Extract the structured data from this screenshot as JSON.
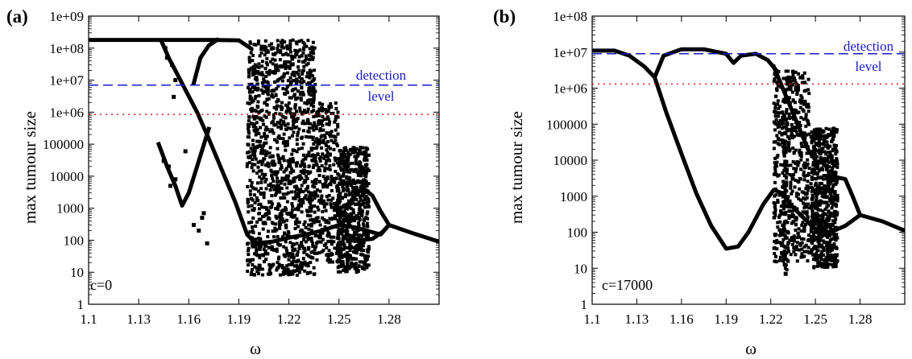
{
  "chart_data": [
    {
      "type": "scatter",
      "panel_label": "(a)",
      "xlabel": "ω",
      "ylabel": "max tumour size",
      "y_scale": "log",
      "xlim": [
        1.1,
        1.31
      ],
      "ylim": [
        1,
        1000000000
      ],
      "x_ticks": [
        "1.1",
        "1.13",
        "1.16",
        "1.19",
        "1.22",
        "1.25",
        "1.28"
      ],
      "x_tick_values": [
        1.1,
        1.13,
        1.16,
        1.19,
        1.22,
        1.25,
        1.28
      ],
      "y_ticks": [
        "1",
        "10",
        "100",
        "1000",
        "10000",
        "100000",
        "1e+06",
        "1e+07",
        "1e+08",
        "1e+09"
      ],
      "annotation": "c=0",
      "detection_label": [
        "detection",
        "level"
      ],
      "detection_level": 7000000,
      "reference_level": 850000,
      "grid": false,
      "colors": {
        "points": "#000000",
        "detection": "#1a1acc",
        "reference": "#dd2222"
      },
      "branches": [
        {
          "x": [
            1.1,
            1.14,
            1.175,
            1.19,
            1.197
          ],
          "y": [
            180000000.0,
            180000000.0,
            180000000.0,
            175000000.0,
            100000000.0
          ]
        },
        {
          "x": [
            1.144,
            1.148,
            1.152,
            1.158,
            1.165,
            1.172,
            1.18,
            1.188,
            1.195,
            1.2,
            1.21,
            1.22,
            1.23,
            1.24,
            1.25,
            1.26,
            1.275,
            1.28,
            1.295,
            1.31
          ],
          "y": [
            150000000.0,
            50000000.0,
            20000000.0,
            5000000.0,
            1000000.0,
            150000.0,
            15000.0,
            1500,
            150,
            80,
            90,
            120,
            150,
            200,
            300,
            250,
            150,
            300,
            160,
            90
          ]
        },
        {
          "x": [
            1.142,
            1.147,
            1.152,
            1.156,
            1.16,
            1.165,
            1.172
          ],
          "y": [
            100000.0,
            20000.0,
            5000,
            1200,
            3000,
            20000.0,
            300000.0
          ]
        },
        {
          "x": [
            1.163,
            1.167,
            1.172,
            1.177
          ],
          "y": [
            8000000.0,
            50000000.0,
            120000000.0,
            180000000.0
          ]
        },
        {
          "x": [
            1.255,
            1.26,
            1.265,
            1.27,
            1.275,
            1.28
          ],
          "y": [
            1000,
            3000,
            4000,
            2500,
            800,
            300
          ]
        },
        {
          "x": [
            1.255,
            1.262,
            1.27,
            1.276,
            1.28
          ],
          "y": [
            150,
            100,
            110,
            180,
            300
          ]
        }
      ],
      "scatter_bands": [
        {
          "x": [
            1.195,
            1.236
          ],
          "y": [
            8,
            180000000.0
          ],
          "density": 1300
        },
        {
          "x": [
            1.236,
            1.25
          ],
          "y": [
            20,
            2000000.0
          ],
          "density": 300
        },
        {
          "x": [
            1.249,
            1.268
          ],
          "y": [
            10,
            80000.0
          ],
          "density": 650
        }
      ],
      "scatter_points": [
        {
          "x": 1.145,
          "y": 30000.0
        },
        {
          "x": 1.148,
          "y": 20000.0
        },
        {
          "x": 1.149,
          "y": 5000.0
        },
        {
          "x": 1.152,
          "y": 8000.0
        },
        {
          "x": 1.163,
          "y": 300
        },
        {
          "x": 1.166,
          "y": 200
        },
        {
          "x": 1.169,
          "y": 700
        },
        {
          "x": 1.171,
          "y": 80
        },
        {
          "x": 1.168,
          "y": 500
        },
        {
          "x": 1.147,
          "y": 50000000.0
        },
        {
          "x": 1.15,
          "y": 30000000.0
        },
        {
          "x": 1.152,
          "y": 10000000.0
        },
        {
          "x": 1.146,
          "y": 100000000.0
        },
        {
          "x": 1.151,
          "y": 3000000.0
        },
        {
          "x": 1.158,
          "y": 60000.0
        }
      ]
    },
    {
      "type": "scatter",
      "panel_label": "(b)",
      "xlabel": "ω",
      "ylabel": "max tumour size",
      "y_scale": "log",
      "xlim": [
        1.1,
        1.31
      ],
      "ylim": [
        1,
        100000000
      ],
      "x_ticks": [
        "1.1",
        "1.13",
        "1.16",
        "1.19",
        "1.22",
        "1.25",
        "1.28"
      ],
      "x_tick_values": [
        1.1,
        1.13,
        1.16,
        1.19,
        1.22,
        1.25,
        1.28
      ],
      "y_ticks": [
        "1",
        "10",
        "100",
        "1000",
        "10000",
        "100000",
        "1e+06",
        "1e+07",
        "1e+08"
      ],
      "annotation": "c=17000",
      "detection_label": [
        "detection",
        "level"
      ],
      "detection_level": 9000000,
      "reference_level": 1300000,
      "grid": false,
      "colors": {
        "points": "#000000",
        "detection": "#1a1acc",
        "reference": "#dd2222"
      },
      "branches": [
        {
          "x": [
            1.1,
            1.115,
            1.125,
            1.135,
            1.142,
            1.148,
            1.16,
            1.175,
            1.19,
            1.195,
            1.2,
            1.21,
            1.218,
            1.224
          ],
          "y": [
            11000000.0,
            11000000.0,
            8000000.0,
            4000000.0,
            2000000.0,
            8000000.0,
            12000000.0,
            12000000.0,
            9000000.0,
            5000000.0,
            8000000.0,
            9000000.0,
            6000000.0,
            3000000.0
          ]
        },
        {
          "x": [
            1.142,
            1.15,
            1.16,
            1.17,
            1.18,
            1.19,
            1.198,
            1.205,
            1.215,
            1.222,
            1.228,
            1.233,
            1.24,
            1.25,
            1.26,
            1.27,
            1.28,
            1.295,
            1.31
          ],
          "y": [
            2000000.0,
            200000.0,
            15000.0,
            1200,
            150,
            35,
            40,
            100,
            600,
            1500,
            1200,
            600,
            300,
            120,
            100,
            150,
            300,
            200,
            110
          ]
        },
        {
          "x": [
            1.222,
            1.228,
            1.232,
            1.238,
            1.245,
            1.25
          ],
          "y": [
            4000000.0,
            1000000.0,
            400000.0,
            100000.0,
            20000.0,
            10000.0
          ]
        },
        {
          "x": [
            1.255,
            1.262,
            1.27,
            1.275,
            1.28
          ],
          "y": [
            1000,
            3500,
            3000,
            1000,
            300
          ]
        }
      ],
      "scatter_bands": [
        {
          "x": [
            1.222,
            1.246
          ],
          "y": [
            15,
            3000000.0
          ],
          "density": 550
        },
        {
          "x": [
            1.247,
            1.265
          ],
          "y": [
            10,
            80000.0
          ],
          "density": 650
        },
        {
          "x": [
            1.228,
            1.231
          ],
          "y": [
            7,
            300000.0
          ],
          "density": 60
        }
      ],
      "scatter_points": [
        {
          "x": 1.23,
          "y": 7
        },
        {
          "x": 1.229,
          "y": 20
        },
        {
          "x": 1.231,
          "y": 100000.0
        },
        {
          "x": 1.232,
          "y": 30000.0
        },
        {
          "x": 1.23,
          "y": 8000.0
        },
        {
          "x": 1.229,
          "y": 2000.0
        }
      ]
    }
  ]
}
